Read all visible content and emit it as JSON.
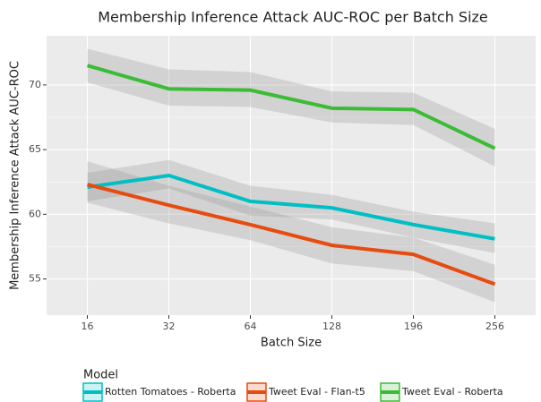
{
  "chart_data": {
    "type": "line",
    "title": "Membership Inference Attack AUC-ROC per Batch Size",
    "x_label": "Batch Size",
    "y_label": "Membership Inference Attack AUC-ROC",
    "categories": [
      "16",
      "32",
      "64",
      "128",
      "196",
      "256"
    ],
    "ylim": [
      52.2,
      73.8
    ],
    "yticks": [
      55,
      60,
      65,
      70
    ],
    "grid": true,
    "legend_title": "Model",
    "legend_position": "bottom",
    "series": [
      {
        "name": "Rotten Tomatoes - Roberta",
        "color": "#00BFC4",
        "values": [
          62.1,
          63.0,
          61.0,
          60.5,
          59.2,
          58.1
        ],
        "band_lower": [
          61.0,
          62.0,
          59.9,
          59.6,
          58.2,
          57.0
        ],
        "band_upper": [
          63.2,
          64.2,
          62.2,
          61.5,
          60.2,
          59.3
        ]
      },
      {
        "name": "Tweet Eval - Flan-t5",
        "color": "#E64B0F",
        "values": [
          62.3,
          60.7,
          59.2,
          57.6,
          56.9,
          54.6
        ],
        "band_lower": [
          60.9,
          59.3,
          58.0,
          56.2,
          55.6,
          53.2
        ],
        "band_upper": [
          64.1,
          62.2,
          60.6,
          59.0,
          58.2,
          56.1
        ]
      },
      {
        "name": "Tweet Eval - Roberta",
        "color": "#3CBB36",
        "values": [
          71.5,
          69.7,
          69.6,
          68.2,
          68.1,
          65.1
        ],
        "band_lower": [
          70.2,
          68.4,
          68.3,
          67.1,
          66.9,
          63.7
        ],
        "band_upper": [
          72.8,
          71.2,
          71.0,
          69.5,
          69.4,
          66.6
        ]
      }
    ]
  }
}
